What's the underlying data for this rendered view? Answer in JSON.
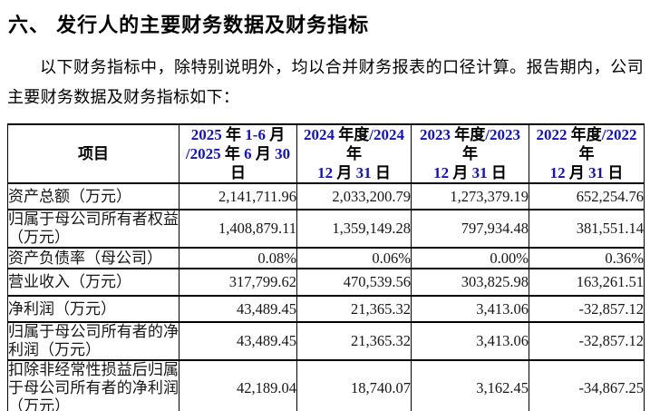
{
  "document": {
    "section_title": "六、 发行人的主要财务数据及财务指标",
    "intro_paragraph": "以下财务指标中，除特别说明外，均以合并财务报表的口径计算。报告期内，公司主要财务数据及财务指标如下："
  },
  "financial_table": {
    "column_headers": [
      "项目",
      "2025 年 1-6 月\n/2025 年 6 月 30 日",
      "2024 年度/2024 年\n12 月 31 日",
      "2023 年度/2023 年\n12 月 31 日",
      "2022 年度/2022 年\n12 月 31 日"
    ],
    "rows": [
      {
        "label": "资产总额（万元）",
        "values": [
          "2,141,711.96",
          "2,033,200.79",
          "1,273,379.19",
          "652,254.76"
        ]
      },
      {
        "label": "归属于母公司所有者权益（万元）",
        "values": [
          "1,408,879.11",
          "1,359,149.28",
          "797,934.48",
          "381,551.14"
        ]
      },
      {
        "label": "资产负债率（母公司）",
        "values": [
          "0.08%",
          "0.06%",
          "0.00%",
          "0.36%"
        ]
      },
      {
        "label": "营业收入（万元）",
        "values": [
          "317,799.62",
          "470,539.56",
          "303,825.98",
          "163,261.51"
        ]
      },
      {
        "label": "净利润（万元）",
        "values": [
          "43,489.45",
          "21,365.32",
          "3,413.06",
          "-32,857.12"
        ]
      },
      {
        "label": "归属于母公司所有者的净利润（万元）",
        "values": [
          "43,489.45",
          "21,365.32",
          "3,413.06",
          "-32,857.12"
        ]
      },
      {
        "label": "扣除非经常性损益后归属于母公司所有者的净利润（万元）",
        "values": [
          "42,189.04",
          "18,740.07",
          "3,162.45",
          "-34,867.25"
        ]
      }
    ]
  },
  "colors": {
    "text": "#1a1a1a",
    "header_digits": "#1111cc",
    "border": "#000000",
    "background": "#ffffff"
  }
}
